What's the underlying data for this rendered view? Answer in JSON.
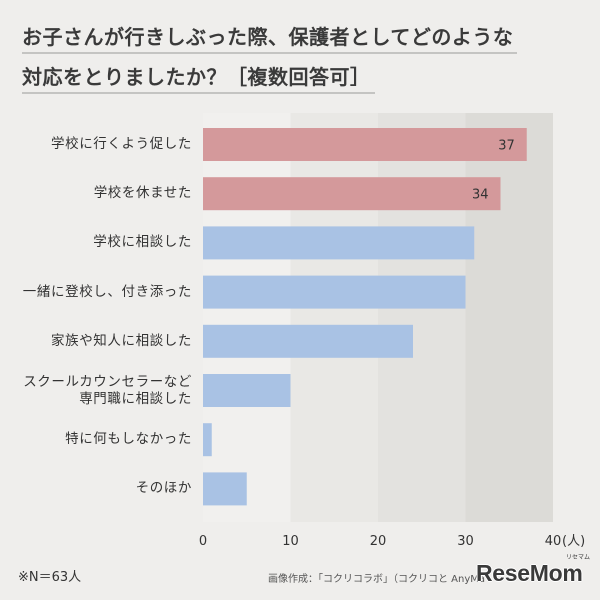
{
  "chart_data": {
    "type": "bar",
    "orientation": "horizontal",
    "title": [
      "お子さんが行きしぶった際、保護者としてどのような",
      "対応をとりましたか？［複数回答可］"
    ],
    "categories": [
      "学校に行くよう促した",
      "学校を休ませた",
      "学校に相談した",
      "一緒に登校し、付き添った",
      "家族や知人に相談した",
      "スクールカウンセラーなど\n専門職に相談した",
      "特に何もしなかった",
      "そのほか"
    ],
    "values": [
      37,
      34,
      31,
      30,
      24,
      10,
      1,
      5
    ],
    "data_labels": [
      37,
      34,
      null,
      null,
      null,
      null,
      null,
      null
    ],
    "highlight": [
      0,
      1
    ],
    "colors": {
      "highlight": "#d4999b",
      "default": "#a9c2e4"
    },
    "xlim": [
      0,
      40
    ],
    "xticks": [
      0,
      10,
      20,
      30,
      40
    ],
    "xunit": "(人)",
    "grid": false,
    "legend": "none",
    "note": "※N＝63人"
  },
  "footer": {
    "credit": "画像作成：「コクリコラボ」（コクリコと AnyMa"
  },
  "logo": {
    "text": "ReseMom",
    "kana": "リセマム"
  }
}
